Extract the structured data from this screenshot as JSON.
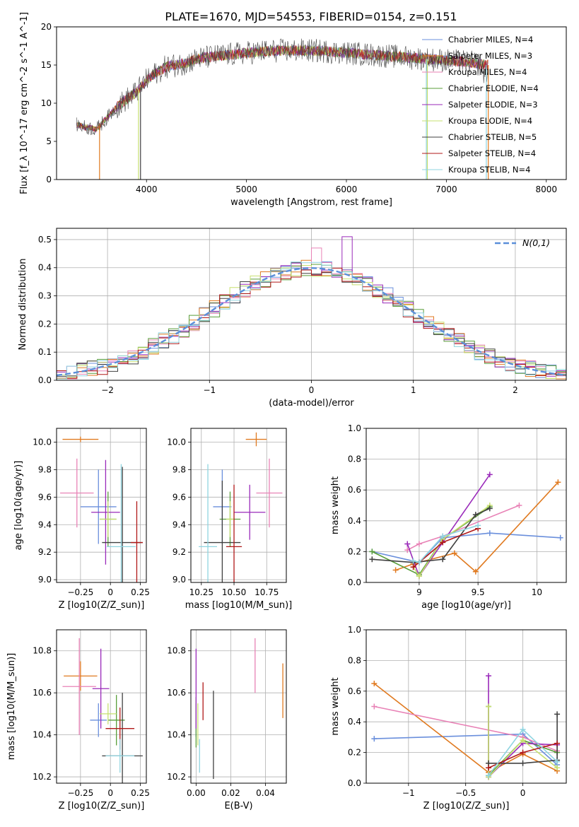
{
  "figure": {
    "title": "PLATE=1670, MJD=54553, FIBERID=0154, z=0.151"
  },
  "model_colors": [
    "#6a8fdc",
    "#e07a20",
    "#e882b6",
    "#5a9e3a",
    "#9a2aba",
    "#c7e070",
    "#404040",
    "#b01818",
    "#8fd4e0"
  ],
  "chart_data": [
    {
      "type": "line",
      "id": "spectrum",
      "xlabel": "wavelength [Angstrom, rest frame]",
      "ylabel": "Flux [f_λ 10^-17 erg cm^-2 s^-1 A^-1]",
      "xlim": [
        3100,
        8200
      ],
      "ylim": [
        0,
        20
      ],
      "xticks": [
        4000,
        5000,
        6000,
        7000,
        8000
      ],
      "yticks": [
        0,
        5,
        10,
        15,
        20
      ],
      "grid": false,
      "legend_position": "right",
      "continuum": {
        "x": [
          3300,
          3400,
          3500,
          3600,
          3700,
          3800,
          3900,
          4000,
          4100,
          4200,
          4300,
          4400,
          4500,
          4600,
          4800,
          5000,
          5200,
          5400,
          5600,
          5800,
          6000,
          6200,
          6400,
          6600,
          6800,
          7000,
          7200,
          7400
        ],
        "y": [
          7.2,
          6.8,
          6.6,
          8.0,
          9.5,
          10.5,
          11.5,
          13.0,
          14.0,
          14.8,
          15.0,
          15.3,
          15.8,
          16.0,
          16.3,
          16.6,
          16.8,
          16.9,
          16.9,
          16.8,
          16.6,
          16.4,
          16.2,
          16.0,
          15.8,
          15.6,
          15.4,
          15.0
        ]
      },
      "series": [
        {
          "name": "Chabrier MILES, N_SSP=4"
        },
        {
          "name": "Salpeter MILES, N_SSP=3"
        },
        {
          "name": "Kroupa MILES, N_SSP=4"
        },
        {
          "name": "Chabrier ELODIE, N_SSP=4"
        },
        {
          "name": "Salpeter ELODIE, N_SSP=3"
        },
        {
          "name": "Kroupa ELODIE, N_SSP=4"
        },
        {
          "name": "Chabrier STELIB, N_SSP=5"
        },
        {
          "name": "Salpeter STELIB, N_SSP=4"
        },
        {
          "name": "Kroupa STELIB, N_SSP=4"
        }
      ]
    },
    {
      "type": "bar",
      "id": "residuals",
      "xlabel": "(data-model)/error",
      "ylabel": "Normed distribution",
      "xlim": [
        -2.5,
        2.5
      ],
      "ylim": [
        0,
        0.54
      ],
      "xticks": [
        -2,
        -1,
        0,
        1,
        2
      ],
      "yticks": [
        0.0,
        0.1,
        0.2,
        0.3,
        0.4,
        0.5
      ],
      "grid": true,
      "legend_position": "top-right",
      "gaussian_label": "N(0,1)"
    },
    {
      "type": "scatter",
      "id": "age-vs-Z",
      "xlabel": "Z [log10(Z/Z_sun)]",
      "ylabel": "age [log10(age/yr)]",
      "xlim": [
        -0.45,
        0.3
      ],
      "ylim": [
        8.98,
        10.1
      ],
      "xticks": [
        -0.25,
        0.0,
        0.25
      ],
      "yticks": [
        9.0,
        9.2,
        9.4,
        9.6,
        9.8,
        10.0
      ],
      "grid": true,
      "points": [
        {
          "x": -0.1,
          "xerr": 0.15,
          "y": 9.53,
          "yerr": 0.27
        },
        {
          "x": -0.25,
          "xerr": 0.15,
          "y": 10.02,
          "yerr": 0.02
        },
        {
          "x": -0.28,
          "xerr": 0.14,
          "y": 9.63,
          "yerr": 0.25
        },
        {
          "x": -0.02,
          "xerr": 0.07,
          "y": 9.44,
          "yerr": 0.2
        },
        {
          "x": -0.04,
          "xerr": 0.12,
          "y": 9.49,
          "yerr": 0.38
        },
        {
          "x": -0.02,
          "xerr": 0.07,
          "y": 9.44,
          "yerr": 0.13
        },
        {
          "x": 0.1,
          "xerr": 0.17,
          "y": 9.27,
          "yerr": 0.55
        },
        {
          "x": 0.22,
          "xerr": 0.05,
          "y": 9.27,
          "yerr": 0.3
        },
        {
          "x": 0.09,
          "xerr": 0.12,
          "y": 9.24,
          "yerr": 0.6
        }
      ]
    },
    {
      "type": "scatter",
      "id": "age-vs-mass",
      "xlabel": "mass [log10(M/M_sun)]",
      "ylabel": "",
      "xlim": [
        10.17,
        10.9
      ],
      "ylim": [
        8.98,
        10.1
      ],
      "xticks": [
        10.25,
        10.5,
        10.75
      ],
      "yticks": [
        9.0,
        9.2,
        9.4,
        9.6,
        9.8,
        10.0
      ],
      "grid": true,
      "points": [
        {
          "x": 10.41,
          "xerr": 0.07,
          "y": 9.53,
          "yerr": 0.27
        },
        {
          "x": 10.67,
          "xerr": 0.08,
          "y": 10.02,
          "yerr": 0.05
        },
        {
          "x": 10.77,
          "xerr": 0.1,
          "y": 9.63,
          "yerr": 0.25
        },
        {
          "x": 10.47,
          "xerr": 0.08,
          "y": 9.44,
          "yerr": 0.2
        },
        {
          "x": 10.62,
          "xerr": 0.12,
          "y": 9.49,
          "yerr": 0.2
        },
        {
          "x": 10.47,
          "xerr": 0.03,
          "y": 9.44,
          "yerr": 0.13
        },
        {
          "x": 10.41,
          "xerr": 0.14,
          "y": 9.27,
          "yerr": 0.45
        },
        {
          "x": 10.5,
          "xerr": 0.06,
          "y": 9.24,
          "yerr": 0.45
        },
        {
          "x": 10.3,
          "xerr": 0.07,
          "y": 9.24,
          "yerr": 0.6
        }
      ]
    },
    {
      "type": "line",
      "id": "weight-vs-age",
      "xlabel": "age [log10(age/yr)]",
      "ylabel": "mass weight",
      "xlim": [
        8.55,
        10.25
      ],
      "ylim": [
        0.0,
        1.0
      ],
      "xticks": [
        9.0,
        9.5,
        10.0
      ],
      "yticks": [
        0.0,
        0.2,
        0.4,
        0.6,
        0.8,
        1.0
      ],
      "grid": true,
      "series": [
        {
          "x": [
            8.6,
            9.0,
            9.2,
            9.6,
            10.2
          ],
          "y": [
            0.2,
            0.13,
            0.29,
            0.32,
            0.29
          ]
        },
        {
          "x": [
            8.8,
            8.95,
            9.3,
            9.48,
            10.18
          ],
          "y": [
            0.08,
            0.12,
            0.19,
            0.07,
            0.65
          ]
        },
        {
          "x": [
            8.9,
            9.0,
            9.2,
            9.85
          ],
          "y": [
            0.21,
            0.25,
            0.3,
            0.5
          ]
        },
        {
          "x": [
            8.6,
            9.0,
            9.2,
            9.6
          ],
          "y": [
            0.2,
            0.05,
            0.28,
            0.49
          ]
        },
        {
          "x": [
            8.9,
            9.0,
            9.2,
            9.6
          ],
          "y": [
            0.25,
            0.04,
            0.26,
            0.7
          ]
        },
        {
          "x": [
            8.95,
            9.0,
            9.2,
            9.6
          ],
          "y": [
            0.1,
            0.04,
            0.28,
            0.5
          ]
        },
        {
          "x": [
            8.6,
            8.95,
            9.2,
            9.48,
            9.6
          ],
          "y": [
            0.15,
            0.13,
            0.15,
            0.44,
            0.48
          ]
        },
        {
          "x": [
            8.95,
            9.0,
            9.2,
            9.5
          ],
          "y": [
            0.1,
            0.13,
            0.26,
            0.35
          ]
        },
        {
          "x": [
            8.95,
            9.0,
            9.2,
            9.5
          ],
          "y": [
            0.14,
            0.13,
            0.3,
            0.37
          ]
        }
      ]
    },
    {
      "type": "scatter",
      "id": "mass-vs-Z",
      "xlabel": "Z [log10(Z/Z_sun)]",
      "ylabel": "mass [log10(M/M_sun)]",
      "xlim": [
        -0.45,
        0.3
      ],
      "ylim": [
        10.17,
        10.9
      ],
      "xticks": [
        -0.25,
        0.0,
        0.25
      ],
      "yticks": [
        10.2,
        10.4,
        10.6,
        10.8
      ],
      "grid": true,
      "points": [
        {
          "x": -0.1,
          "xerr": 0.07,
          "y": 10.47,
          "yerr": 0.08
        },
        {
          "x": -0.25,
          "xerr": 0.14,
          "y": 10.68,
          "yerr": 0.07
        },
        {
          "x": -0.26,
          "xerr": 0.14,
          "y": 10.63,
          "yerr": 0.23
        },
        {
          "x": 0.05,
          "xerr": 0.07,
          "y": 10.47,
          "yerr": 0.12
        },
        {
          "x": -0.08,
          "xerr": 0.07,
          "y": 10.62,
          "yerr": 0.19
        },
        {
          "x": -0.02,
          "xerr": 0.07,
          "y": 10.5,
          "yerr": 0.05
        },
        {
          "x": 0.1,
          "xerr": 0.17,
          "y": 10.3,
          "yerr": 0.3
        },
        {
          "x": 0.08,
          "xerr": 0.12,
          "y": 10.43,
          "yerr": 0.1
        },
        {
          "x": 0.08,
          "xerr": 0.12,
          "y": 10.3,
          "yerr": 0.08
        }
      ]
    },
    {
      "type": "scatter",
      "id": "mass-vs-EBV",
      "xlabel": "E(B-V)",
      "ylabel": "",
      "xlim": [
        -0.003,
        0.052
      ],
      "ylim": [
        10.17,
        10.9
      ],
      "xticks": [
        0.0,
        0.02,
        0.04
      ],
      "yticks": [
        10.2,
        10.4,
        10.6,
        10.8
      ],
      "grid": true,
      "points": [
        {
          "x": 0.0,
          "y": 10.47,
          "yerr": 0.08
        },
        {
          "x": 0.05,
          "y": 10.61,
          "yerr": 0.13
        },
        {
          "x": 0.034,
          "y": 10.73,
          "yerr": 0.13
        },
        {
          "x": 0.0,
          "y": 10.46,
          "yerr": 0.12
        },
        {
          "x": 0.0,
          "y": 10.62,
          "yerr": 0.19
        },
        {
          "x": 0.001,
          "y": 10.45,
          "yerr": 0.1
        },
        {
          "x": 0.01,
          "y": 10.4,
          "yerr": 0.21
        },
        {
          "x": 0.004,
          "y": 10.56,
          "yerr": 0.09
        },
        {
          "x": 0.002,
          "y": 10.3,
          "yerr": 0.08
        }
      ]
    },
    {
      "type": "line",
      "id": "weight-vs-Z",
      "xlabel": "Z [log10(Z/Z_sun)]",
      "ylabel": "mass weight",
      "xlim": [
        -1.37,
        0.38
      ],
      "ylim": [
        0.0,
        1.0
      ],
      "xticks": [
        -1.0,
        -0.5,
        0.0
      ],
      "yticks": [
        0.0,
        0.2,
        0.4,
        0.6,
        0.8,
        1.0
      ],
      "grid": true,
      "series": [
        {
          "x": [
            -1.3,
            0.0,
            0.3
          ],
          "y": [
            0.29,
            0.32,
            0.12
          ]
        },
        {
          "x": [
            -1.3,
            -0.3,
            0.0,
            0.3
          ],
          "y": [
            0.65,
            0.07,
            0.19,
            0.08
          ]
        },
        {
          "x": [
            -1.3,
            0.0,
            0.3
          ],
          "y": [
            0.5,
            0.3,
            0.21
          ]
        },
        {
          "x": [
            -0.3,
            -0.3,
            0.0,
            0.3
          ],
          "y": [
            0.5,
            0.05,
            0.28,
            0.2
          ]
        },
        {
          "x": [
            -0.3,
            -0.3,
            0.0,
            0.3
          ],
          "y": [
            0.7,
            0.04,
            0.26,
            0.25
          ]
        },
        {
          "x": [
            -0.3,
            -0.3,
            0.0,
            0.3
          ],
          "y": [
            0.5,
            0.04,
            0.28,
            0.1
          ]
        },
        {
          "x": [
            -0.3,
            0.0,
            0.3,
            0.3
          ],
          "y": [
            0.13,
            0.13,
            0.15,
            0.45
          ]
        },
        {
          "x": [
            -0.3,
            0.0,
            0.3
          ],
          "y": [
            0.1,
            0.2,
            0.26
          ]
        },
        {
          "x": [
            -0.3,
            0.0,
            0.3
          ],
          "y": [
            0.05,
            0.35,
            0.14
          ]
        }
      ]
    }
  ]
}
